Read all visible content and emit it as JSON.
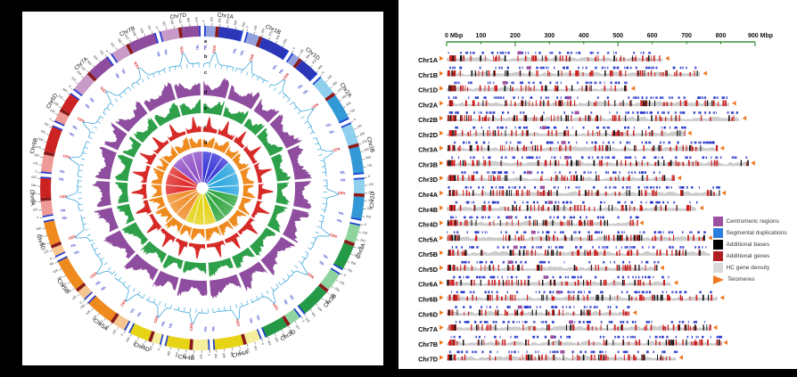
{
  "figure": {
    "background": "#000000",
    "panel_bg": "#ffffff"
  },
  "chart_data": [
    {
      "type": "circos",
      "panel": "left",
      "track_letters": [
        "a",
        "b",
        "c",
        "d",
        "e",
        "f",
        "g"
      ],
      "tracks": [
        {
          "letter": "a",
          "kind": "chromosome-ideogram",
          "features": [
            "CEN",
            "TEL"
          ]
        },
        {
          "letter": "b",
          "kind": "line-track",
          "color": "#3FA9DC"
        },
        {
          "letter": "c",
          "kind": "histogram",
          "color": "#8E4D9E"
        },
        {
          "letter": "d",
          "kind": "histogram",
          "color": "#2EA04A"
        },
        {
          "letter": "e",
          "kind": "histogram",
          "color": "#D62B28"
        },
        {
          "letter": "f",
          "kind": "histogram",
          "color": "#EE8A1E"
        },
        {
          "letter": "g",
          "kind": "radial-links"
        }
      ],
      "cen_label": "CEN",
      "tel_label": "TEL",
      "cen_label_color": "#D42A28",
      "tel_label_color": "#2432C8",
      "tick_unit": "Mbp",
      "tick_interval_mbp": 125,
      "tick_values_mbp": [
        0,
        125,
        250,
        375,
        500,
        625,
        750,
        875
      ],
      "centromere_block_color": "#8B1A1A",
      "telomere_cap_color": "#1F3FD4",
      "group_colors": {
        "1": {
          "light": "#93A1DE",
          "dark": "#2B37B8",
          "fan": "#3E3BD8"
        },
        "2": {
          "light": "#8ED0EE",
          "dark": "#3399D6",
          "fan": "#31A9E0"
        },
        "3": {
          "light": "#8FD49E",
          "dark": "#259A46",
          "fan": "#37A845"
        },
        "4": {
          "light": "#F6EE9A",
          "dark": "#E8D416",
          "fan": "#E5D51E"
        },
        "5": {
          "light": "#F6C690",
          "dark": "#EE8A1E",
          "fan": "#F09030"
        },
        "6": {
          "light": "#EE9A96",
          "dark": "#CC2222",
          "fan": "#E03030"
        },
        "7": {
          "light": "#C79AC7",
          "dark": "#8E4D9E",
          "fan": "#9455C8"
        }
      },
      "chromosomes": [
        {
          "name": "Chr1A",
          "group": 1,
          "length_mbp": 630,
          "centromere_mbp": 213
        },
        {
          "name": "Chr1B",
          "group": 1,
          "length_mbp": 740,
          "centromere_mbp": 240
        },
        {
          "name": "Chr1D",
          "group": 1,
          "length_mbp": 530,
          "centromere_mbp": 170
        },
        {
          "name": "Chr2A",
          "group": 2,
          "length_mbp": 825,
          "centromere_mbp": 357
        },
        {
          "name": "Chr2B",
          "group": 2,
          "length_mbp": 855,
          "centromere_mbp": 380
        },
        {
          "name": "Chr2D",
          "group": 2,
          "length_mbp": 695,
          "centromere_mbp": 284
        },
        {
          "name": "Chr3A",
          "group": 3,
          "length_mbp": 790,
          "centromere_mbp": 341
        },
        {
          "name": "Chr3B",
          "group": 3,
          "length_mbp": 880,
          "centromere_mbp": 350
        },
        {
          "name": "Chr3D",
          "group": 3,
          "length_mbp": 665,
          "centromere_mbp": 240
        },
        {
          "name": "Chr4A",
          "group": 4,
          "length_mbp": 795,
          "centromere_mbp": 280
        },
        {
          "name": "Chr4B",
          "group": 4,
          "length_mbp": 730,
          "centromere_mbp": 303
        },
        {
          "name": "Chr4D",
          "group": 4,
          "length_mbp": 555,
          "centromere_mbp": 185
        },
        {
          "name": "Chr5A",
          "group": 5,
          "length_mbp": 755,
          "centromere_mbp": 253
        },
        {
          "name": "Chr5B",
          "group": 5,
          "length_mbp": 770,
          "centromere_mbp": 201
        },
        {
          "name": "Chr5D",
          "group": 5,
          "length_mbp": 615,
          "centromere_mbp": 185
        },
        {
          "name": "Chr6A",
          "group": 6,
          "length_mbp": 655,
          "centromere_mbp": 289
        },
        {
          "name": "Chr6B",
          "group": 6,
          "length_mbp": 790,
          "centromere_mbp": 326
        },
        {
          "name": "Chr6D",
          "group": 6,
          "length_mbp": 535,
          "centromere_mbp": 214
        },
        {
          "name": "Chr7A",
          "group": 7,
          "length_mbp": 770,
          "centromere_mbp": 363
        },
        {
          "name": "Chr7B",
          "group": 7,
          "length_mbp": 800,
          "centromere_mbp": 309
        },
        {
          "name": "Chr7D",
          "group": 7,
          "length_mbp": 670,
          "centromere_mbp": 338
        }
      ]
    },
    {
      "type": "linear-chromosome-map",
      "panel": "right",
      "axis": {
        "unit": "Mbp",
        "min": 0,
        "max": 900,
        "tick_step": 100,
        "labels": [
          "0 Mbp",
          "100",
          "200",
          "300",
          "400",
          "500",
          "600",
          "700",
          "800",
          "900 Mbp"
        ],
        "color": "#157A15"
      },
      "mark_colors": {
        "segmental_duplications": "#2233CC",
        "additional_bases": "#111111",
        "additional_genes": "#CC1F1F",
        "hc_gene_density": "#CCCCCC",
        "centromeric_regions": "#9B50A0",
        "telomeres": "#F07820"
      },
      "legend": {
        "items": [
          {
            "label": "Centromeric regions",
            "color": "#9B50A0",
            "shape": "square"
          },
          {
            "label": "Segmental duplications",
            "color": "#2E7DE0",
            "shape": "square"
          },
          {
            "label": "Additional bases",
            "color": "#000000",
            "shape": "square"
          },
          {
            "label": "Additional genes",
            "color": "#B01F24",
            "shape": "square"
          },
          {
            "label": "HC gene density",
            "color": "#D9D9D9",
            "shape": "square"
          },
          {
            "label": "Telomeres",
            "color": "#F07820",
            "shape": "triangle"
          }
        ]
      }
    }
  ]
}
